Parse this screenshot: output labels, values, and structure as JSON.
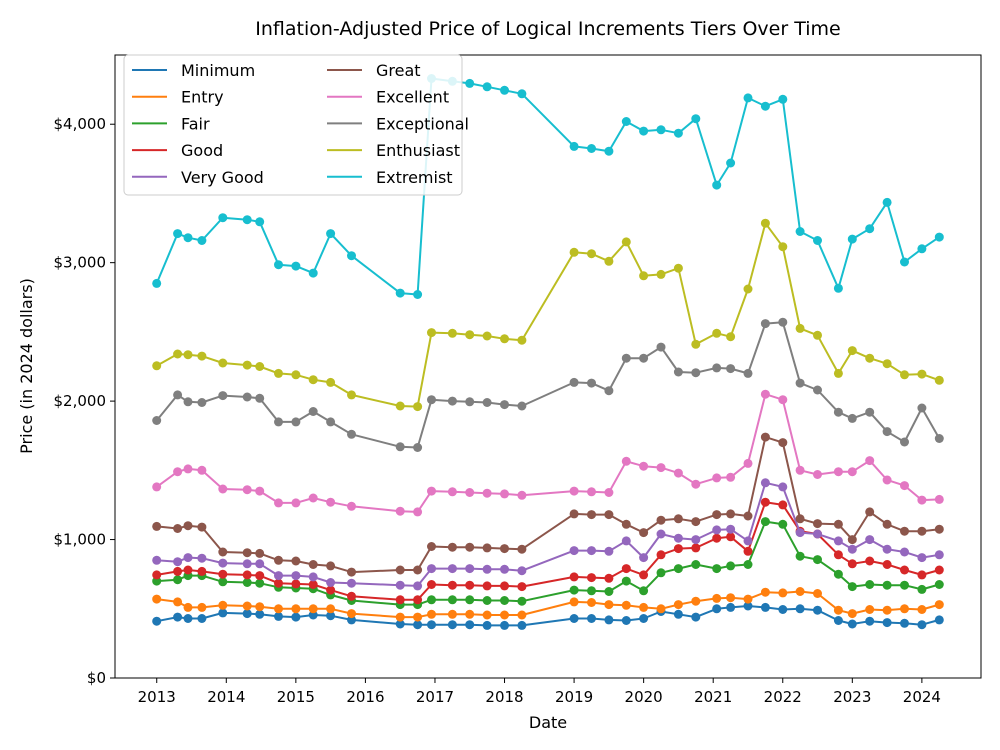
{
  "chart_data": {
    "type": "line",
    "title": "Inflation-Adjusted Price of Logical Increments Tiers Over Time",
    "xlabel": "Date",
    "ylabel": "Price (in 2024 dollars)",
    "xlim": [
      2012.4,
      2024.85
    ],
    "ylim": [
      0,
      4500
    ],
    "x_ticks": [
      2013,
      2014,
      2015,
      2016,
      2017,
      2018,
      2019,
      2020,
      2021,
      2022,
      2023,
      2024
    ],
    "x_tick_labels": [
      "2013",
      "2014",
      "2015",
      "2016",
      "2017",
      "2018",
      "2019",
      "2020",
      "2021",
      "2022",
      "2023",
      "2024"
    ],
    "y_ticks": [
      0,
      1000,
      2000,
      3000,
      4000
    ],
    "y_tick_labels": [
      "$0",
      "$1,000",
      "$2,000",
      "$3,000",
      "$4,000"
    ],
    "grid": false,
    "legend": {
      "placement": "top-left",
      "columns": 2
    },
    "x": [
      2013.0,
      2013.3,
      2013.45,
      2013.65,
      2013.95,
      2014.3,
      2014.48,
      2014.75,
      2015.0,
      2015.25,
      2015.5,
      2015.8,
      2016.5,
      2016.75,
      2016.95,
      2017.25,
      2017.5,
      2017.75,
      2018.0,
      2018.25,
      2019.0,
      2019.25,
      2019.5,
      2019.75,
      2020.0,
      2020.25,
      2020.5,
      2020.75,
      2021.05,
      2021.25,
      2021.5,
      2021.75,
      2022.0,
      2022.25,
      2022.5,
      2022.8,
      2023.0,
      2023.25,
      2023.5,
      2023.75,
      2024.0,
      2024.25
    ],
    "series": [
      {
        "name": "Minimum",
        "color": "#1f77b4",
        "values": [
          410,
          440,
          430,
          430,
          470,
          465,
          460,
          445,
          440,
          455,
          450,
          420,
          390,
          385,
          385,
          385,
          385,
          380,
          380,
          380,
          430,
          430,
          420,
          415,
          430,
          480,
          460,
          440,
          500,
          510,
          520,
          510,
          495,
          500,
          490,
          415,
          390,
          410,
          400,
          395,
          385,
          420
        ]
      },
      {
        "name": "Entry",
        "color": "#ff7f0e",
        "values": [
          570,
          550,
          510,
          510,
          525,
          520,
          515,
          500,
          500,
          500,
          500,
          465,
          440,
          440,
          460,
          460,
          460,
          455,
          455,
          455,
          550,
          545,
          530,
          525,
          510,
          500,
          530,
          555,
          575,
          580,
          570,
          620,
          615,
          625,
          610,
          490,
          465,
          495,
          490,
          500,
          495,
          530
        ]
      },
      {
        "name": "Fair",
        "color": "#2ca02c",
        "values": [
          700,
          710,
          740,
          740,
          695,
          690,
          685,
          655,
          650,
          645,
          600,
          560,
          530,
          530,
          565,
          565,
          565,
          560,
          560,
          555,
          635,
          630,
          625,
          700,
          630,
          760,
          790,
          820,
          790,
          810,
          820,
          1130,
          1110,
          880,
          855,
          750,
          660,
          675,
          670,
          670,
          640,
          675
        ]
      },
      {
        "name": "Good",
        "color": "#d62728",
        "values": [
          745,
          770,
          780,
          770,
          750,
          745,
          740,
          685,
          680,
          675,
          635,
          590,
          565,
          565,
          675,
          670,
          670,
          665,
          665,
          660,
          730,
          725,
          720,
          790,
          745,
          890,
          935,
          940,
          1010,
          1020,
          915,
          1270,
          1250,
          1060,
          1040,
          890,
          825,
          845,
          820,
          780,
          745,
          780
        ]
      },
      {
        "name": "Very Good",
        "color": "#9467bd",
        "values": [
          850,
          840,
          870,
          865,
          830,
          825,
          825,
          740,
          740,
          730,
          690,
          685,
          670,
          665,
          790,
          790,
          790,
          785,
          785,
          775,
          920,
          920,
          915,
          990,
          870,
          1040,
          1010,
          1000,
          1070,
          1075,
          990,
          1410,
          1380,
          1050,
          1040,
          990,
          930,
          1000,
          930,
          910,
          870,
          890
        ]
      },
      {
        "name": "Great",
        "color": "#8c564b",
        "values": [
          1095,
          1080,
          1100,
          1090,
          910,
          905,
          900,
          850,
          845,
          820,
          810,
          765,
          780,
          780,
          950,
          945,
          945,
          940,
          935,
          930,
          1185,
          1180,
          1180,
          1110,
          1050,
          1140,
          1150,
          1130,
          1180,
          1185,
          1170,
          1740,
          1700,
          1150,
          1115,
          1110,
          1000,
          1200,
          1110,
          1060,
          1060,
          1075
        ]
      },
      {
        "name": "Excellent",
        "color": "#e377c2",
        "values": [
          1380,
          1490,
          1510,
          1500,
          1365,
          1360,
          1350,
          1265,
          1265,
          1300,
          1270,
          1240,
          1205,
          1200,
          1350,
          1345,
          1340,
          1335,
          1330,
          1320,
          1350,
          1345,
          1340,
          1565,
          1530,
          1520,
          1480,
          1400,
          1445,
          1450,
          1550,
          2050,
          2010,
          1500,
          1470,
          1490,
          1490,
          1570,
          1430,
          1390,
          1285,
          1290
        ]
      },
      {
        "name": "Exceptional",
        "color": "#7f7f7f",
        "values": [
          1860,
          2045,
          1995,
          1990,
          2040,
          2030,
          2020,
          1850,
          1850,
          1925,
          1850,
          1760,
          1670,
          1665,
          2010,
          2000,
          1995,
          1990,
          1975,
          1965,
          2135,
          2130,
          2075,
          2310,
          2310,
          2390,
          2210,
          2205,
          2240,
          2235,
          2200,
          2560,
          2570,
          2130,
          2080,
          1920,
          1875,
          1920,
          1780,
          1705,
          1950,
          1730
        ]
      },
      {
        "name": "Enthusiast",
        "color": "#bcbd22",
        "values": [
          2255,
          2340,
          2335,
          2325,
          2275,
          2260,
          2250,
          2200,
          2190,
          2155,
          2135,
          2045,
          1965,
          1960,
          2495,
          2490,
          2480,
          2470,
          2450,
          2440,
          3075,
          3065,
          3010,
          3150,
          2905,
          2915,
          2960,
          2410,
          2490,
          2465,
          2810,
          3285,
          3115,
          2525,
          2475,
          2200,
          2365,
          2310,
          2270,
          2190,
          2195,
          2150
        ]
      },
      {
        "name": "Extremist",
        "color": "#17becf",
        "values": [
          2850,
          3210,
          3180,
          3160,
          3325,
          3310,
          3295,
          2985,
          2975,
          2925,
          3210,
          3050,
          2780,
          2770,
          4330,
          4310,
          4295,
          4270,
          4245,
          4220,
          3840,
          3825,
          3805,
          4020,
          3950,
          3960,
          3935,
          4040,
          3560,
          3720,
          4190,
          4130,
          4180,
          3225,
          3160,
          2815,
          3170,
          3245,
          3435,
          3005,
          3100,
          3185
        ]
      }
    ]
  }
}
